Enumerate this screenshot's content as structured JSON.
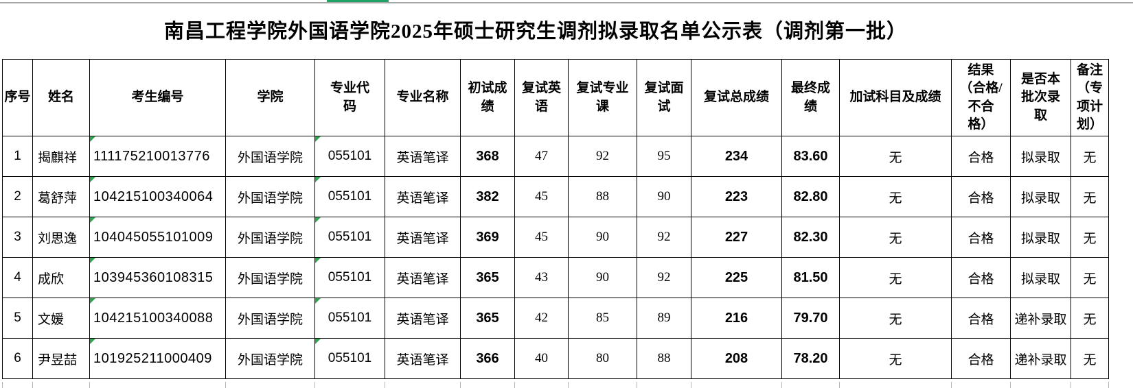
{
  "title": "南昌工程学院外国语学院2025年硕士研究生调剂拟录取名单公示表（调剂第一批）",
  "colors": {
    "top_accent_green": "#21a366",
    "error_flag_green": "#2da44e",
    "table_border": "#000000",
    "background": "#ffffff"
  },
  "icons": {
    "error_flag": "excel-number-stored-as-text-flag"
  },
  "table": {
    "headers": [
      "序号",
      "姓名",
      "考生编号",
      "学院",
      "专业代\n码",
      "专业名称",
      "初试成\n绩",
      "复试英\n语",
      "复试专业\n课",
      "复试面\n试",
      "复试总成绩",
      "最终成\n绩",
      "加试科目及成绩",
      "结果\n（合格/\n不合\n格）",
      "是否本\n批次录\n取",
      "备注\n（专\n项计\n划）"
    ],
    "rows": [
      [
        "1",
        "揭麒祥",
        "111175210013776",
        "外国语学院",
        "055101",
        "英语笔译",
        "368",
        "47",
        "92",
        "95",
        "234",
        "83.60",
        "无",
        "合格",
        "拟录取",
        "无"
      ],
      [
        "2",
        "葛舒萍",
        "104215100340064",
        "外国语学院",
        "055101",
        "英语笔译",
        "382",
        "45",
        "88",
        "90",
        "223",
        "82.80",
        "无",
        "合格",
        "拟录取",
        "无"
      ],
      [
        "3",
        "刘思逸",
        "104045055101009",
        "外国语学院",
        "055101",
        "英语笔译",
        "369",
        "45",
        "90",
        "92",
        "227",
        "82.30",
        "无",
        "合格",
        "拟录取",
        "无"
      ],
      [
        "4",
        "成欣",
        "103945360108315",
        "外国语学院",
        "055101",
        "英语笔译",
        "365",
        "43",
        "90",
        "92",
        "225",
        "81.50",
        "无",
        "合格",
        "拟录取",
        "无"
      ],
      [
        "5",
        "文媛",
        "104215100340088",
        "外国语学院",
        "055101",
        "英语笔译",
        "365",
        "42",
        "85",
        "89",
        "216",
        "79.70",
        "无",
        "合格",
        "递补录取",
        "无"
      ],
      [
        "6",
        "尹昱喆",
        "101925211000409",
        "外国语学院",
        "055101",
        "英语笔译",
        "366",
        "40",
        "80",
        "88",
        "208",
        "78.20",
        "无",
        "合格",
        "递补录取",
        "无"
      ]
    ]
  }
}
